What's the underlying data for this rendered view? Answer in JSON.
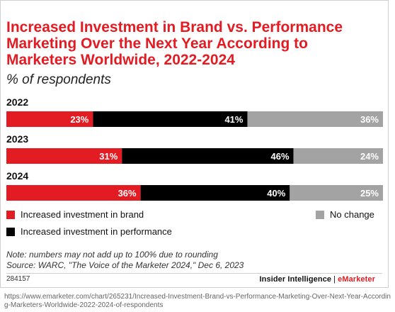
{
  "chart_data": {
    "type": "bar",
    "stacked": true,
    "orientation": "horizontal",
    "title": "Increased Investment in Brand vs. Performance Marketing Over the Next Year According to Marketers Worldwide, 2022-2024",
    "subtitle": "% of respondents",
    "categories": [
      "2022",
      "2023",
      "2024"
    ],
    "series": [
      {
        "name": "Increased investment in brand",
        "color": "#e31b23",
        "values": [
          23,
          31,
          36
        ],
        "labels": [
          "23%",
          "31%",
          "36%"
        ]
      },
      {
        "name": "Increased investment in performance",
        "color": "#000000",
        "values": [
          41,
          46,
          40
        ],
        "labels": [
          "41%",
          "46%",
          "40%"
        ]
      },
      {
        "name": "No change",
        "color": "#a3a3a3",
        "values": [
          36,
          24,
          25
        ],
        "labels": [
          "36%",
          "24%",
          "25%"
        ]
      }
    ],
    "xlim": [
      0,
      100
    ],
    "grid": false,
    "legend_position": "bottom"
  },
  "note": "Note: numbers may not add up to 100% due to rounding",
  "source": "Source: WARC, \"The Voice of the Marketer 2024,\" Dec 6, 2023",
  "chart_id": "284157",
  "brand": {
    "name": "Insider Intelligence",
    "separator": "|",
    "accent": "eMarketer"
  },
  "url": "https://www.emarketer.com/chart/265231/Increased-Investment-Brand-vs-Performance-Marketing-Over-Next-Year-According-Marketers-Worldwide-2022-2024-of-respondents"
}
